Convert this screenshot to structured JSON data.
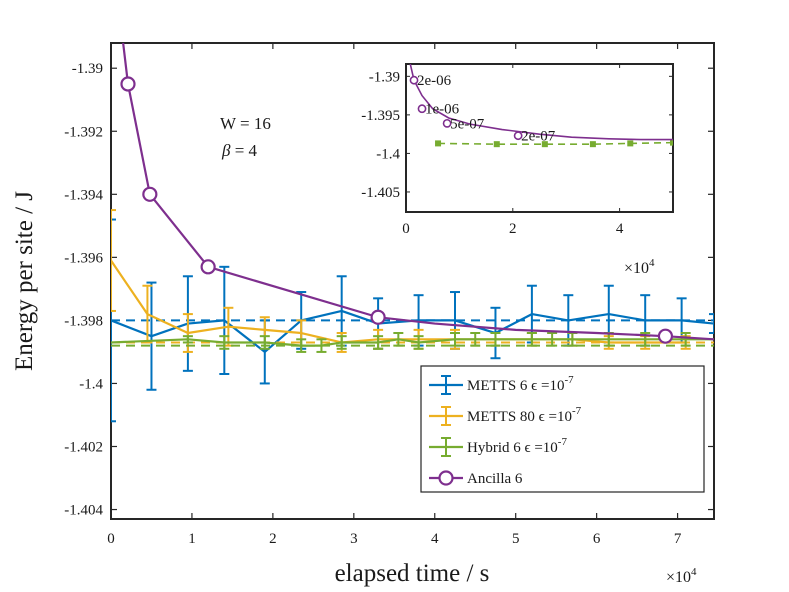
{
  "chart_data": {
    "type": "line",
    "xlabel": "elapsed time / s",
    "ylabel": "Energy per site / J",
    "x_multiplier": "×10",
    "x_multiplier_exp": "4",
    "xlim": [
      0,
      74500
    ],
    "ylim": [
      -1.4043,
      -1.3892
    ],
    "xticks": [
      0,
      10000,
      20000,
      30000,
      40000,
      50000,
      60000,
      70000
    ],
    "xtick_labels": [
      "0",
      "1",
      "2",
      "3",
      "4",
      "5",
      "6",
      "7"
    ],
    "yticks": [
      -1.404,
      -1.402,
      -1.4,
      -1.398,
      -1.396,
      -1.394,
      -1.392,
      -1.39
    ],
    "ytick_labels": [
      "-1.404",
      "-1.402",
      "-1.4",
      "-1.398",
      "-1.396",
      "-1.394",
      "-1.392",
      "-1.39"
    ],
    "annotations": {
      "w": "W = 16",
      "beta_symbol": "β",
      "beta_rest": " = 4"
    },
    "legend_position": "lower-right",
    "series": [
      {
        "name": "METTS 6 ϵ =10",
        "name_exp": "-7",
        "color": "#0072BD",
        "style": "errorbar",
        "x": [
          0,
          5000,
          9500,
          14000,
          19000,
          23500,
          28500,
          33000,
          38000,
          42500,
          47500,
          52000,
          56500,
          61500,
          66000,
          70500,
          74500
        ],
        "y": [
          -1.398,
          -1.3985,
          -1.3981,
          -1.398,
          -1.399,
          -1.398,
          -1.3977,
          -1.3981,
          -1.398,
          -1.398,
          -1.3984,
          -1.3978,
          -1.398,
          -1.3978,
          -1.398,
          -1.398,
          -1.3981
        ],
        "err": [
          0.0032,
          0.0017,
          0.0015,
          0.0017,
          0.001,
          0.0009,
          0.0011,
          0.0008,
          0.0008,
          0.0009,
          0.0008,
          0.0009,
          0.0008,
          0.0009,
          0.0008,
          0.0007,
          0.0003
        ],
        "reference": -1.398
      },
      {
        "name": "METTS 80 ϵ =10",
        "name_exp": "-7",
        "color": "#EDB120",
        "style": "errorbar",
        "x": [
          0,
          4500,
          9500,
          14500,
          19000,
          23500,
          28500,
          33000,
          38000,
          42500,
          47500,
          52000,
          57000,
          61500,
          66000,
          71000
        ],
        "y": [
          -1.3961,
          -1.3978,
          -1.3984,
          -1.3982,
          -1.3983,
          -1.3984,
          -1.3987,
          -1.3986,
          -1.3986,
          -1.3986,
          -1.3986,
          -1.3986,
          -1.3986,
          -1.3987,
          -1.3987,
          -1.3987
        ],
        "err": [
          0.0016,
          0.0009,
          0.0006,
          0.0006,
          0.0004,
          0.0004,
          0.0003,
          0.0003,
          0.0003,
          0.0003,
          0.0002,
          0.0002,
          0.0002,
          0.0002,
          0.0002,
          0.0002
        ],
        "reference": -1.3987
      },
      {
        "name": "Hybrid 6 ϵ =10",
        "name_exp": "-7",
        "color": "#77AC30",
        "style": "errorbar",
        "x": [
          0,
          9500,
          14000,
          19000,
          23500,
          26000,
          28500,
          33000,
          35500,
          38000,
          42500,
          45000,
          47500,
          52000,
          54500,
          57000,
          61500,
          66000,
          71000,
          74500
        ],
        "y": [
          -1.3987,
          -1.3986,
          -1.3987,
          -1.3987,
          -1.3988,
          -1.3988,
          -1.3987,
          -1.3987,
          -1.3986,
          -1.3987,
          -1.3986,
          -1.3986,
          -1.3986,
          -1.3986,
          -1.3986,
          -1.3986,
          -1.3986,
          -1.3986,
          -1.3986,
          -1.3986
        ],
        "err": [
          0,
          0.0001,
          0.0002,
          0.0002,
          0.0002,
          0.0002,
          0.0002,
          0.0002,
          0.0002,
          0.0002,
          0.0002,
          0.0002,
          0.0002,
          0.0002,
          0.0002,
          0.0002,
          0.0002,
          0.0002,
          0.0002,
          0
        ],
        "reference": -1.3988
      },
      {
        "name": "Ancilla 6",
        "color": "#7E2F8E",
        "style": "line-circle",
        "x": [
          1500,
          2100,
          4800,
          12000,
          33000,
          40000,
          50000,
          60000,
          68500,
          74500
        ],
        "y": [
          -1.3892,
          -1.3905,
          -1.394,
          -1.3963,
          -1.3979,
          -1.3981,
          -1.3983,
          -1.3984,
          -1.3985,
          -1.3986
        ],
        "marker_indices": [
          1,
          2,
          3,
          4,
          8
        ]
      }
    ],
    "inset": {
      "x_multiplier": "×10",
      "x_multiplier_exp": "4",
      "xlim": [
        0,
        50000
      ],
      "ylim": [
        -1.4076,
        -1.3884
      ],
      "xticks": [
        0,
        20000,
        40000
      ],
      "xtick_labels": [
        "0",
        "2",
        "4"
      ],
      "yticks": [
        -1.405,
        -1.4,
        -1.395,
        -1.39
      ],
      "ytick_labels": [
        "-1.405",
        "-1.4",
        "-1.395",
        "-1.39"
      ],
      "ancilla": {
        "color": "#7E2F8E",
        "x": [
          800,
          1500,
          3000,
          5000,
          8000,
          12000,
          18000,
          25000,
          31000,
          38000,
          44000,
          50000
        ],
        "y": [
          -1.3884,
          -1.3905,
          -1.3925,
          -1.3942,
          -1.3954,
          -1.3962,
          -1.3969,
          -1.3975,
          -1.3979,
          -1.3981,
          -1.3982,
          -1.3982
        ],
        "markers": [
          {
            "x": 1500,
            "y": -1.3905,
            "label": "2e-06"
          },
          {
            "x": 3000,
            "y": -1.3942,
            "label": "1e-06"
          },
          {
            "x": 7700,
            "y": -1.3961,
            "label": "5e-07"
          },
          {
            "x": 21000,
            "y": -1.3977,
            "label": "2e-07"
          }
        ]
      },
      "hybrid": {
        "color": "#77AC30",
        "x": [
          6000,
          17000,
          26000,
          35000,
          42000,
          50000
        ],
        "y": [
          -1.3987,
          -1.3988,
          -1.3988,
          -1.3988,
          -1.3987,
          -1.3986
        ]
      }
    }
  }
}
